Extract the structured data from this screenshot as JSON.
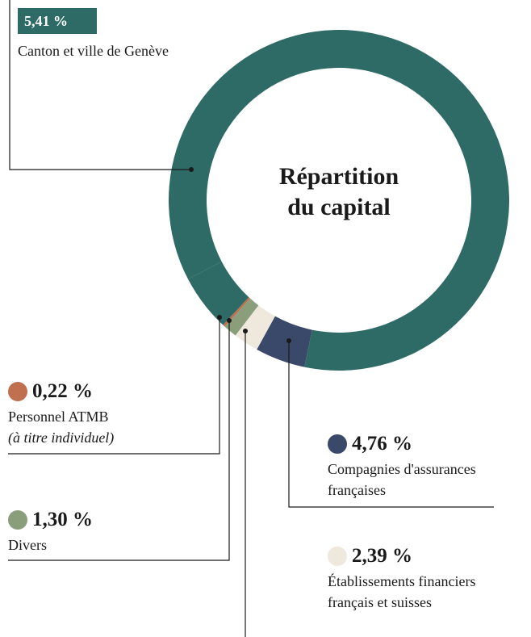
{
  "chart_data": {
    "type": "donut",
    "title": [
      "Répartition",
      "du capital"
    ],
    "categories": [
      "Compagnies d'assurances françaises",
      "Établissements financiers français et suisses",
      "Divers",
      "Personnel ATMB",
      "Canton et ville de Genève",
      null
    ],
    "notes": [
      null,
      null,
      null,
      "(à titre individuel)",
      null,
      null
    ],
    "values": [
      4.76,
      2.39,
      1.3,
      0.22,
      5.41,
      85.92
    ],
    "value_labels": [
      "4,76 %",
      "2,39 %",
      "1,30 %",
      "0,22 %",
      "5,41 %",
      null
    ],
    "colors": [
      "#3a4869",
      "#efe8dc",
      "#8a9e7b",
      "#c0704f",
      "#2e6b66",
      "#2e6b66"
    ]
  }
}
